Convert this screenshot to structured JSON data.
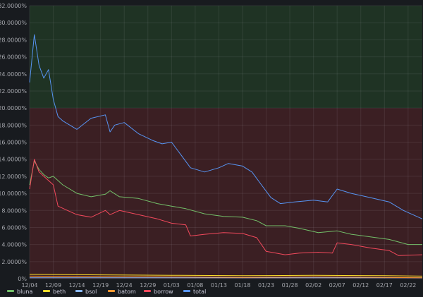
{
  "chart_data": {
    "type": "line",
    "title": "",
    "xlabel": "",
    "ylabel": "",
    "ylim": [
      0,
      32
    ],
    "y_ticks": [
      0,
      2,
      4,
      6,
      8,
      10,
      12,
      14,
      16,
      18,
      20,
      22,
      24,
      26,
      28,
      30,
      32
    ],
    "y_tick_labels": [
      "0%",
      "2.0000%",
      "4.0000%",
      "6.0000%",
      "8.0000%",
      "10.0000%",
      "12.0000%",
      "14.0000%",
      "16.0000%",
      "18.0000%",
      "20.0000%",
      "22.0000%",
      "24.0000%",
      "26.0000%",
      "28.0000%",
      "30.0000%",
      "32.0000%"
    ],
    "x_range": [
      "2021-12-04",
      "2022-02-25"
    ],
    "x_ticks": [
      "2021-12-04",
      "2021-12-09",
      "2021-12-14",
      "2021-12-19",
      "2021-12-24",
      "2021-12-29",
      "2022-01-03",
      "2022-01-08",
      "2022-01-13",
      "2022-01-18",
      "2022-01-23",
      "2022-01-28",
      "2022-02-02",
      "2022-02-07",
      "2022-02-12",
      "2022-02-17",
      "2022-02-22"
    ],
    "x_tick_labels": [
      "12/04",
      "12/09",
      "12/14",
      "12/19",
      "12/24",
      "12/29",
      "01/03",
      "01/08",
      "01/13",
      "01/18",
      "01/23",
      "01/28",
      "02/02",
      "02/07",
      "02/12",
      "02/17",
      "02/22"
    ],
    "grid": true,
    "legend_position": "bottom-left",
    "thresholds": [
      {
        "from": 0,
        "to": 20,
        "color": "#3b1f23"
      },
      {
        "from": 20,
        "to": 32,
        "color": "#1f3324"
      }
    ],
    "series": [
      {
        "name": "bluna",
        "color": "#73bf69",
        "x": [
          "2021-12-04",
          "2021-12-05",
          "2021-12-06",
          "2021-12-07",
          "2021-12-08",
          "2021-12-09",
          "2021-12-11",
          "2021-12-14",
          "2021-12-17",
          "2021-12-20",
          "2021-12-21",
          "2021-12-23",
          "2021-12-27",
          "2021-12-31",
          "2022-01-03",
          "2022-01-06",
          "2022-01-10",
          "2022-01-14",
          "2022-01-18",
          "2022-01-21",
          "2022-01-23",
          "2022-01-27",
          "2022-01-30",
          "2022-02-03",
          "2022-02-07",
          "2022-02-10",
          "2022-02-14",
          "2022-02-18",
          "2022-02-22",
          "2022-02-25"
        ],
        "y": [
          11.0,
          13.8,
          12.8,
          12.2,
          11.8,
          12.0,
          11.0,
          10.0,
          9.6,
          9.9,
          10.3,
          9.6,
          9.4,
          8.8,
          8.5,
          8.2,
          7.6,
          7.3,
          7.2,
          6.8,
          6.2,
          6.2,
          5.9,
          5.4,
          5.6,
          5.2,
          4.9,
          4.6,
          4.0,
          4.0
        ]
      },
      {
        "name": "beth",
        "color": "#fade2a",
        "x": [
          "2021-12-04",
          "2021-12-19",
          "2022-01-03",
          "2022-01-18",
          "2022-02-02",
          "2022-02-17",
          "2022-02-25"
        ],
        "y": [
          0.5,
          0.45,
          0.4,
          0.35,
          0.4,
          0.35,
          0.3
        ]
      },
      {
        "name": "bsol",
        "color": "#8ab8ff",
        "x": [
          "2021-12-04",
          "2022-02-25"
        ],
        "y": [
          0.1,
          0.1
        ]
      },
      {
        "name": "batom",
        "color": "#ff9830",
        "x": [
          "2021-12-04",
          "2021-12-19",
          "2022-01-03",
          "2022-01-18",
          "2022-02-02",
          "2022-02-17",
          "2022-02-25"
        ],
        "y": [
          0.3,
          0.25,
          0.2,
          0.15,
          0.2,
          0.15,
          0.1
        ]
      },
      {
        "name": "borrow",
        "color": "#f2495c",
        "x": [
          "2021-12-04",
          "2021-12-05",
          "2021-12-06",
          "2021-12-07",
          "2021-12-08",
          "2021-12-09",
          "2021-12-10",
          "2021-12-12",
          "2021-12-14",
          "2021-12-17",
          "2021-12-20",
          "2021-12-21",
          "2021-12-23",
          "2021-12-27",
          "2021-12-31",
          "2022-01-03",
          "2022-01-06",
          "2022-01-07",
          "2022-01-10",
          "2022-01-14",
          "2022-01-18",
          "2022-01-21",
          "2022-01-23",
          "2022-01-27",
          "2022-01-30",
          "2022-02-03",
          "2022-02-06",
          "2022-02-07",
          "2022-02-10",
          "2022-02-14",
          "2022-02-18",
          "2022-02-20",
          "2022-02-25"
        ],
        "y": [
          10.5,
          14.0,
          12.5,
          12.0,
          11.5,
          11.0,
          8.5,
          8.0,
          7.5,
          7.2,
          8.0,
          7.5,
          8.0,
          7.5,
          7.0,
          6.5,
          6.3,
          5.0,
          5.2,
          5.4,
          5.3,
          4.8,
          3.2,
          2.8,
          3.0,
          3.1,
          3.0,
          4.2,
          4.0,
          3.6,
          3.3,
          2.7,
          2.8
        ]
      },
      {
        "name": "total",
        "color": "#5794f2",
        "x": [
          "2021-12-04",
          "2021-12-05",
          "2021-12-06",
          "2021-12-07",
          "2021-12-08",
          "2021-12-09",
          "2021-12-10",
          "2021-12-11",
          "2021-12-14",
          "2021-12-17",
          "2021-12-20",
          "2021-12-21",
          "2021-12-22",
          "2021-12-24",
          "2021-12-27",
          "2021-12-30",
          "2022-01-01",
          "2022-01-03",
          "2022-01-05",
          "2022-01-07",
          "2022-01-10",
          "2022-01-13",
          "2022-01-15",
          "2022-01-18",
          "2022-01-20",
          "2022-01-22",
          "2022-01-24",
          "2022-01-26",
          "2022-01-29",
          "2022-02-02",
          "2022-02-05",
          "2022-02-07",
          "2022-02-10",
          "2022-02-14",
          "2022-02-18",
          "2022-02-21",
          "2022-02-25"
        ],
        "y": [
          23.0,
          28.6,
          25.0,
          23.5,
          24.5,
          21.0,
          19.0,
          18.5,
          17.5,
          18.8,
          19.2,
          17.2,
          18.0,
          18.3,
          17.0,
          16.2,
          15.8,
          16.0,
          14.5,
          13.0,
          12.5,
          13.0,
          13.5,
          13.2,
          12.5,
          11.0,
          9.5,
          8.8,
          9.0,
          9.2,
          9.0,
          10.5,
          10.0,
          9.5,
          9.0,
          8.0,
          7.0
        ]
      }
    ]
  }
}
